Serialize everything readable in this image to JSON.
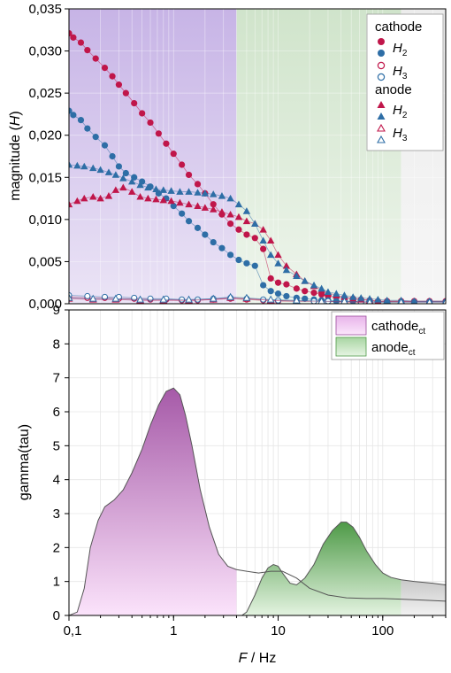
{
  "chart_data": [
    {
      "type": "scatter",
      "xscale": "log",
      "xlim": [
        0.1,
        400
      ],
      "ylim": [
        0,
        0.035
      ],
      "ylabel_prefix": "magnitude (",
      "ylabel_var": "H",
      "ylabel_suffix": ")",
      "yticks": [
        0,
        0.005,
        0.01,
        0.015,
        0.02,
        0.025,
        0.03,
        0.035
      ],
      "ytick_labels": [
        "0,000",
        "0,005",
        "0,010",
        "0,015",
        "0,020",
        "0,025",
        "0,030",
        "0,035"
      ],
      "grid": true,
      "legend_position": "top-right",
      "background_bands": [
        {
          "from": 0.1,
          "to": 4,
          "color": "#cdbde6"
        },
        {
          "from": 4,
          "to": 150,
          "color": "#d6e8d2"
        },
        {
          "from": 150,
          "to": 400,
          "color": "#ececec"
        }
      ],
      "legend": {
        "group1": "cathode",
        "group2": "anode",
        "h2": "H",
        "h2_sub": "2",
        "h3": "H",
        "h3_sub": "3"
      },
      "series": [
        {
          "name": "cathode H2",
          "group": "cathode",
          "marker": "circle",
          "filled": true,
          "color": "#c0164a",
          "x": [
            0.1,
            0.11,
            0.13,
            0.15,
            0.18,
            0.22,
            0.26,
            0.3,
            0.35,
            0.42,
            0.5,
            0.6,
            0.72,
            0.85,
            1.0,
            1.2,
            1.4,
            1.7,
            2.0,
            2.4,
            2.9,
            3.5,
            4.2,
            5.0,
            6.0,
            7.2,
            8.5,
            10,
            12,
            15,
            18,
            22,
            26,
            30,
            36,
            43,
            52,
            62,
            75,
            90,
            110,
            150,
            200,
            280,
            400
          ],
          "y": [
            0.0321,
            0.0316,
            0.031,
            0.0301,
            0.0291,
            0.028,
            0.027,
            0.026,
            0.025,
            0.0238,
            0.0226,
            0.0215,
            0.0202,
            0.019,
            0.0178,
            0.0165,
            0.0153,
            0.0142,
            0.0131,
            0.0118,
            0.0106,
            0.0095,
            0.0088,
            0.0082,
            0.0078,
            0.0065,
            0.003,
            0.0025,
            0.0023,
            0.0018,
            0.0015,
            0.0013,
            0.0011,
            0.0009,
            0.0008,
            0.0007,
            0.0006,
            0.0005,
            0.0004,
            0.0003,
            0.0003,
            0.0003,
            0.0003,
            0.0003,
            0.0003
          ]
        },
        {
          "name": "cathode H3",
          "group": "cathode",
          "marker": "circle",
          "filled": false,
          "color": "#c0164a",
          "x": [
            0.1,
            0.15,
            0.22,
            0.3,
            0.42,
            0.6,
            0.85,
            1.2,
            1.7,
            2.4,
            3.5,
            5.0,
            7.2,
            10,
            15,
            22,
            30,
            43,
            62,
            90,
            150,
            280,
            400
          ],
          "y": [
            0.0008,
            0.0007,
            0.0007,
            0.0006,
            0.0006,
            0.0005,
            0.0005,
            0.0004,
            0.0004,
            0.0005,
            0.0006,
            0.0005,
            0.0004,
            0.0003,
            0.0003,
            0.0003,
            0.0003,
            0.0002,
            0.0002,
            0.0002,
            0.0002,
            0.0002,
            0.0002
          ]
        },
        {
          "name": "cathode H2 (blue)",
          "group": "cathode",
          "marker": "circle",
          "filled": true,
          "color": "#2e6ea6",
          "x": [
            0.1,
            0.11,
            0.13,
            0.15,
            0.18,
            0.22,
            0.26,
            0.3,
            0.35,
            0.42,
            0.5,
            0.6,
            0.72,
            0.85,
            1.0,
            1.2,
            1.4,
            1.7,
            2.0,
            2.4,
            2.9,
            3.5,
            4.2,
            5.0,
            6.0,
            7.2,
            8.5,
            10,
            12,
            15,
            18,
            22,
            26,
            30,
            36,
            43,
            52,
            62,
            75,
            90,
            110,
            150,
            200,
            280,
            400
          ],
          "y": [
            0.0229,
            0.0224,
            0.0218,
            0.0208,
            0.0198,
            0.0188,
            0.0175,
            0.0163,
            0.0155,
            0.015,
            0.0145,
            0.0139,
            0.0131,
            0.0125,
            0.0116,
            0.0107,
            0.0098,
            0.009,
            0.0082,
            0.0073,
            0.0066,
            0.0058,
            0.0052,
            0.0048,
            0.0045,
            0.0022,
            0.0015,
            0.0012,
            0.0009,
            0.0007,
            0.0006,
            0.0005,
            0.0004,
            0.0004,
            0.0003,
            0.0003,
            0.0003,
            0.0002,
            0.0002,
            0.0002,
            0.0002,
            0.0002,
            0.0002,
            0.0002,
            0.0002
          ]
        },
        {
          "name": "cathode H3 (blue)",
          "group": "cathode",
          "marker": "circle",
          "filled": false,
          "color": "#2e6ea6",
          "x": [
            0.1,
            0.15,
            0.22,
            0.3,
            0.42,
            0.6,
            0.85,
            1.2,
            1.7,
            2.4,
            3.5,
            5.0,
            7.2,
            10,
            15,
            22,
            30,
            43,
            62,
            90,
            150,
            280,
            400
          ],
          "y": [
            0.001,
            0.0009,
            0.0008,
            0.0008,
            0.0007,
            0.0006,
            0.0006,
            0.0005,
            0.0005,
            0.0006,
            0.0007,
            0.0006,
            0.0005,
            0.0004,
            0.0003,
            0.0003,
            0.0003,
            0.0003,
            0.0002,
            0.0002,
            0.0002,
            0.0002,
            0.0002
          ]
        },
        {
          "name": "anode H2",
          "group": "anode",
          "marker": "triangle",
          "filled": true,
          "color": "#c0164a",
          "x": [
            0.1,
            0.12,
            0.14,
            0.17,
            0.2,
            0.24,
            0.28,
            0.33,
            0.4,
            0.48,
            0.57,
            0.68,
            0.8,
            0.95,
            1.15,
            1.4,
            1.7,
            2.0,
            2.4,
            2.9,
            3.5,
            4.2,
            5.0,
            6.0,
            7.2,
            8.5,
            10,
            12,
            15,
            18,
            22,
            26,
            30,
            36,
            43,
            52,
            62,
            75,
            90,
            110,
            150,
            200,
            280,
            400
          ],
          "y": [
            0.0118,
            0.0122,
            0.0125,
            0.0127,
            0.0125,
            0.0128,
            0.0135,
            0.0138,
            0.0133,
            0.0127,
            0.0125,
            0.0124,
            0.0123,
            0.0122,
            0.012,
            0.0118,
            0.0116,
            0.0114,
            0.0112,
            0.0109,
            0.0106,
            0.0103,
            0.0098,
            0.0095,
            0.0088,
            0.0075,
            0.0058,
            0.0045,
            0.0035,
            0.0027,
            0.0021,
            0.0016,
            0.0013,
            0.001,
            0.0008,
            0.0006,
            0.0005,
            0.0004,
            0.0003,
            0.0003,
            0.0003,
            0.0003,
            0.0003,
            0.0003
          ]
        },
        {
          "name": "anode H3",
          "group": "anode",
          "marker": "triangle",
          "filled": false,
          "color": "#c0164a",
          "x": [
            0.1,
            0.17,
            0.28,
            0.48,
            0.8,
            1.4,
            2.4,
            3.5,
            5.0,
            8.5,
            15,
            26,
            43,
            75,
            150,
            280,
            400
          ],
          "y": [
            0.0006,
            0.0005,
            0.0005,
            0.0004,
            0.0004,
            0.0004,
            0.0005,
            0.0007,
            0.0006,
            0.0004,
            0.0003,
            0.0003,
            0.0002,
            0.0002,
            0.0002,
            0.0002,
            0.0002
          ]
        },
        {
          "name": "anode H2 (blue)",
          "group": "anode",
          "marker": "triangle",
          "filled": true,
          "color": "#2e6ea6",
          "x": [
            0.1,
            0.12,
            0.14,
            0.17,
            0.2,
            0.24,
            0.28,
            0.33,
            0.4,
            0.48,
            0.57,
            0.68,
            0.8,
            0.95,
            1.15,
            1.4,
            1.7,
            2.0,
            2.4,
            2.9,
            3.5,
            4.2,
            5.0,
            6.0,
            7.2,
            8.5,
            10,
            12,
            15,
            18,
            22,
            26,
            30,
            36,
            43,
            52,
            62,
            75,
            90,
            110,
            150,
            200,
            280,
            400
          ],
          "y": [
            0.0165,
            0.0164,
            0.0163,
            0.0161,
            0.0159,
            0.0156,
            0.0153,
            0.0149,
            0.0145,
            0.0141,
            0.0138,
            0.0136,
            0.0135,
            0.0134,
            0.0133,
            0.0133,
            0.0132,
            0.0131,
            0.013,
            0.0128,
            0.0125,
            0.0118,
            0.011,
            0.0095,
            0.0075,
            0.0058,
            0.0048,
            0.004,
            0.0033,
            0.0027,
            0.0022,
            0.0018,
            0.0014,
            0.0012,
            0.001,
            0.0008,
            0.0007,
            0.0006,
            0.0005,
            0.0004,
            0.0004,
            0.0003,
            0.0003,
            0.0003
          ]
        },
        {
          "name": "anode H3 (blue)",
          "group": "anode",
          "marker": "triangle",
          "filled": false,
          "color": "#2e6ea6",
          "x": [
            0.1,
            0.17,
            0.28,
            0.48,
            0.8,
            1.4,
            2.4,
            3.5,
            5.0,
            8.5,
            15,
            26,
            43,
            75,
            150,
            280,
            400
          ],
          "y": [
            0.0007,
            0.0006,
            0.0006,
            0.0005,
            0.0005,
            0.0005,
            0.0006,
            0.0008,
            0.0007,
            0.0005,
            0.0004,
            0.0003,
            0.0003,
            0.0002,
            0.0002,
            0.0002,
            0.0002
          ]
        }
      ]
    },
    {
      "type": "area",
      "xscale": "log",
      "xlim": [
        0.1,
        400
      ],
      "ylim": [
        0,
        9
      ],
      "xticks": [
        0.1,
        1,
        10,
        100
      ],
      "xtick_labels": [
        "0,1",
        "1",
        "10",
        "100"
      ],
      "yticks": [
        0,
        1,
        2,
        3,
        4,
        5,
        6,
        7,
        8,
        9
      ],
      "ytick_labels": [
        "0",
        "1",
        "2",
        "3",
        "4",
        "5",
        "6",
        "7",
        "8",
        "9"
      ],
      "xlabel_var": "F",
      "xlabel_suffix": " / Hz",
      "ylabel": "gamma(tau)",
      "grid": true,
      "legend_position": "top-right",
      "legend": {
        "cathode": "cathode",
        "cathode_sub": "ct",
        "anode": "anode",
        "anode_sub": "ct"
      },
      "series": [
        {
          "name": "cathode",
          "color": "#9a4c9c",
          "x": [
            0.1,
            0.12,
            0.14,
            0.16,
            0.19,
            0.22,
            0.27,
            0.33,
            0.4,
            0.5,
            0.6,
            0.72,
            0.85,
            1.0,
            1.15,
            1.3,
            1.5,
            1.8,
            2.2,
            2.7,
            3.3,
            4.0,
            5.0,
            6.5,
            8.5,
            11,
            15,
            20,
            30,
            45,
            70,
            100,
            150,
            250,
            400
          ],
          "y": [
            0.0,
            0.1,
            0.8,
            2.0,
            2.8,
            3.2,
            3.4,
            3.7,
            4.2,
            4.9,
            5.6,
            6.2,
            6.6,
            6.7,
            6.5,
            5.9,
            5.0,
            3.7,
            2.6,
            1.8,
            1.45,
            1.35,
            1.3,
            1.25,
            1.3,
            1.3,
            1.1,
            0.8,
            0.6,
            0.52,
            0.5,
            0.5,
            0.48,
            0.45,
            0.42
          ]
        },
        {
          "name": "anode",
          "color": "#4f9a48",
          "x": [
            4.0,
            4.5,
            5.0,
            6.0,
            7.0,
            8.0,
            9.0,
            10,
            11,
            13,
            15,
            18,
            22,
            27,
            33,
            40,
            45,
            52,
            60,
            70,
            85,
            100,
            120,
            150,
            200,
            300,
            400
          ],
          "y": [
            0.0,
            0.0,
            0.1,
            0.6,
            1.1,
            1.4,
            1.5,
            1.45,
            1.25,
            0.95,
            0.9,
            1.1,
            1.5,
            2.1,
            2.5,
            2.75,
            2.75,
            2.6,
            2.3,
            1.9,
            1.5,
            1.25,
            1.12,
            1.05,
            1.0,
            0.95,
            0.9
          ]
        }
      ],
      "background_bands": [
        {
          "from": 0.1,
          "to": 4,
          "color": "#f4d2f2"
        },
        {
          "from": 4,
          "to": 150,
          "color": "#cfe8cc"
        },
        {
          "from": 150,
          "to": 400,
          "color": "#dcdcdc"
        }
      ]
    }
  ]
}
